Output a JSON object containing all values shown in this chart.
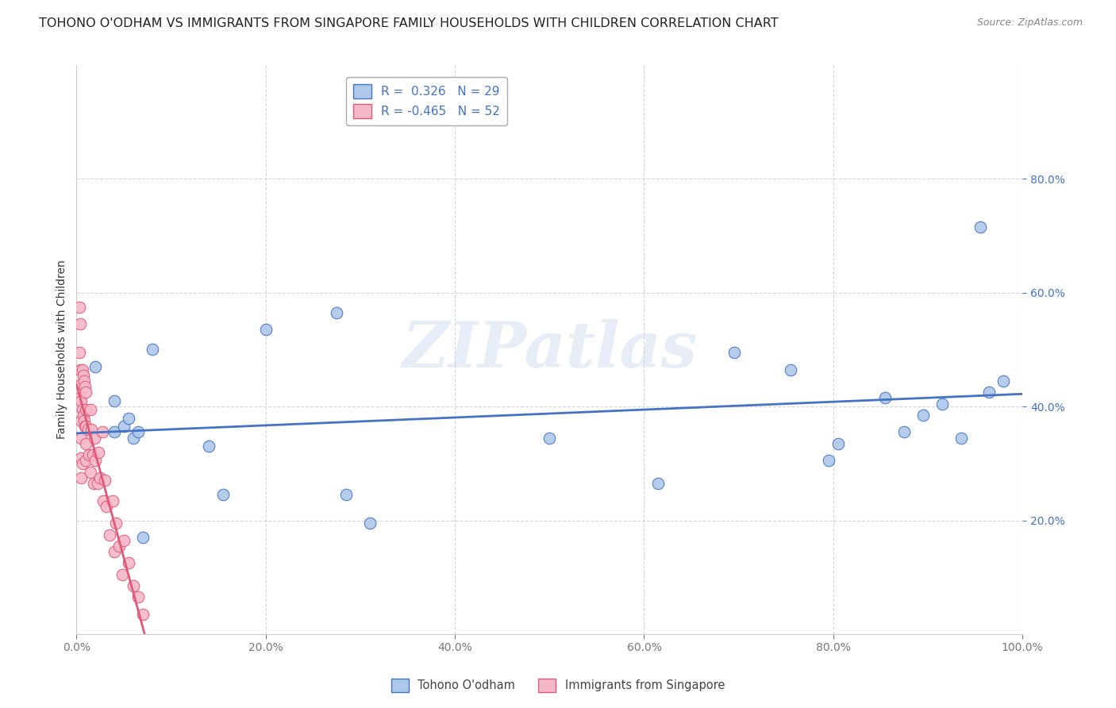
{
  "title": "TOHONO O'ODHAM VS IMMIGRANTS FROM SINGAPORE FAMILY HOUSEHOLDS WITH CHILDREN CORRELATION CHART",
  "source": "Source: ZipAtlas.com",
  "ylabel": "Family Households with Children",
  "watermark": "ZIPatlas",
  "blue_R": 0.326,
  "blue_N": 29,
  "pink_R": -0.465,
  "pink_N": 52,
  "blue_color": "#adc8e8",
  "pink_color": "#f5b8c8",
  "blue_line_color": "#4472c4",
  "pink_line_color": "#e05878",
  "xlim": [
    0,
    1.0
  ],
  "ylim": [
    0,
    1.0
  ],
  "blue_x": [
    0.02,
    0.04,
    0.04,
    0.05,
    0.055,
    0.06,
    0.065,
    0.07,
    0.08,
    0.14,
    0.155,
    0.2,
    0.275,
    0.285,
    0.31,
    0.5,
    0.615,
    0.695,
    0.755,
    0.795,
    0.805,
    0.855,
    0.875,
    0.895,
    0.915,
    0.935,
    0.955,
    0.965,
    0.98
  ],
  "blue_y": [
    0.47,
    0.41,
    0.355,
    0.365,
    0.38,
    0.345,
    0.355,
    0.17,
    0.5,
    0.33,
    0.245,
    0.535,
    0.565,
    0.245,
    0.195,
    0.345,
    0.265,
    0.495,
    0.465,
    0.305,
    0.335,
    0.415,
    0.355,
    0.385,
    0.405,
    0.345,
    0.715,
    0.425,
    0.445
  ],
  "pink_x": [
    0.003,
    0.003,
    0.004,
    0.004,
    0.004,
    0.005,
    0.005,
    0.005,
    0.005,
    0.005,
    0.005,
    0.006,
    0.006,
    0.006,
    0.007,
    0.007,
    0.008,
    0.008,
    0.009,
    0.009,
    0.01,
    0.01,
    0.01,
    0.01,
    0.01,
    0.012,
    0.013,
    0.015,
    0.015,
    0.016,
    0.017,
    0.018,
    0.019,
    0.02,
    0.022,
    0.023,
    0.025,
    0.027,
    0.028,
    0.03,
    0.032,
    0.035,
    0.038,
    0.04,
    0.042,
    0.045,
    0.048,
    0.05,
    0.055,
    0.06,
    0.065,
    0.07
  ],
  "pink_y": [
    0.575,
    0.495,
    0.545,
    0.465,
    0.415,
    0.44,
    0.41,
    0.375,
    0.345,
    0.31,
    0.275,
    0.465,
    0.395,
    0.3,
    0.455,
    0.385,
    0.445,
    0.375,
    0.435,
    0.365,
    0.425,
    0.395,
    0.365,
    0.335,
    0.305,
    0.36,
    0.315,
    0.395,
    0.285,
    0.36,
    0.315,
    0.265,
    0.345,
    0.305,
    0.265,
    0.32,
    0.275,
    0.355,
    0.235,
    0.27,
    0.225,
    0.175,
    0.235,
    0.145,
    0.195,
    0.155,
    0.105,
    0.165,
    0.125,
    0.085,
    0.065,
    0.035
  ],
  "legend_label_blue": "Tohono O'odham",
  "legend_label_pink": "Immigrants from Singapore",
  "title_fontsize": 11.5,
  "tick_fontsize": 10,
  "ylabel_fontsize": 10
}
